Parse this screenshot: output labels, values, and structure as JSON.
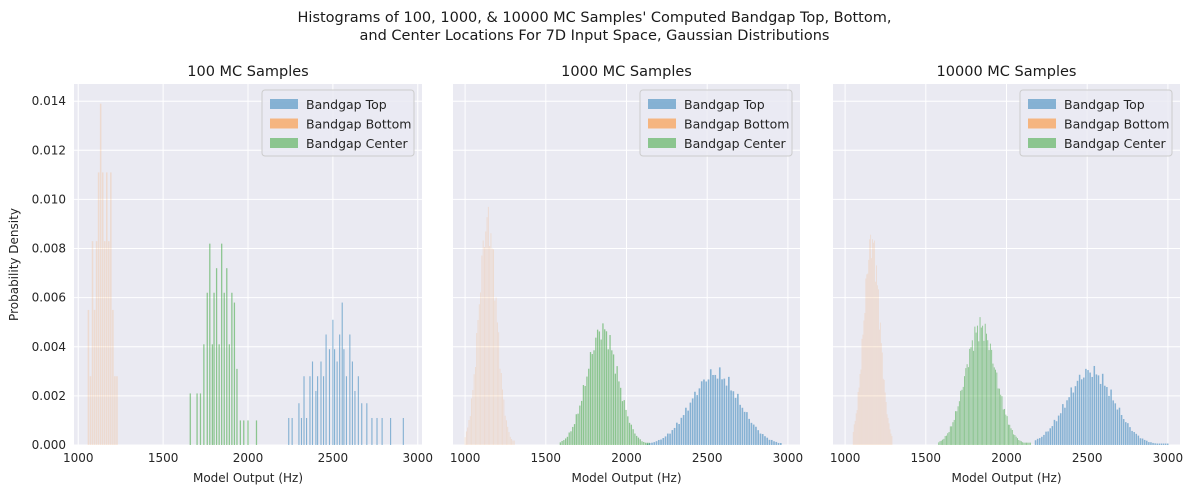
{
  "figure": {
    "title_line1": "Histograms of 100, 1000, & 10000 MC Samples' Computed Bandgap Top, Bottom,",
    "title_line2": "and Center Locations For 7D Input Space, Gaussian Distributions",
    "background": "#ffffff",
    "axes_background": "#eaeaf2",
    "grid_color": "#ffffff"
  },
  "chart_data": [
    {
      "type": "bar",
      "title": "100 MC Samples",
      "xlabel": "Model Output (Hz)",
      "ylabel": "Probability Density",
      "xlim": [
        975,
        3025
      ],
      "ylim": [
        0,
        0.0147
      ],
      "xticks": [
        "1000",
        "1500",
        "2000",
        "2500",
        "3000"
      ],
      "yticks": [
        "0.000",
        "0.002",
        "0.004",
        "0.006",
        "0.008",
        "0.010",
        "0.012",
        "0.014"
      ],
      "legend": [
        "Bandgap Top",
        "Bandgap Bottom",
        "Bandgap Center"
      ],
      "legend_position": "top-right",
      "series": [
        {
          "name": "Bandgap Top",
          "color": "#1f77b4",
          "alpha": 0.5,
          "bin_width": 6.6,
          "x": [
            2240,
            2260,
            2300,
            2315,
            2330,
            2345,
            2365,
            2380,
            2400,
            2410,
            2430,
            2445,
            2460,
            2480,
            2500,
            2510,
            2525,
            2540,
            2555,
            2565,
            2580,
            2600,
            2615,
            2630,
            2650,
            2670,
            2700,
            2730,
            2760,
            2790,
            2840,
            2915
          ],
          "y": [
            0.0011,
            0.0011,
            0.0017,
            0.0011,
            0.0028,
            0.0011,
            0.0028,
            0.0034,
            0.0022,
            0.0028,
            0.0034,
            0.0028,
            0.0045,
            0.0039,
            0.0051,
            0.0039,
            0.0034,
            0.0045,
            0.0058,
            0.0039,
            0.0028,
            0.0045,
            0.0034,
            0.0022,
            0.0028,
            0.0017,
            0.0017,
            0.0011,
            0.0011,
            0.0011,
            0.0011,
            0.0011
          ]
        },
        {
          "name": "Bandgap Bottom",
          "color": "#ff7f0e",
          "alpha": 0.15,
          "bin_width": 9,
          "x": [
            1060,
            1072,
            1084,
            1096,
            1108,
            1120,
            1132,
            1144,
            1156,
            1168,
            1180,
            1192,
            1204,
            1216,
            1228
          ],
          "y": [
            0.0055,
            0.0028,
            0.0083,
            0.0055,
            0.0083,
            0.0111,
            0.0139,
            0.0111,
            0.0083,
            0.0111,
            0.0083,
            0.0111,
            0.0055,
            0.0028,
            0.0028
          ]
        },
        {
          "name": "Bandgap Center",
          "color": "#2ca02c",
          "alpha": 0.5,
          "bin_width": 7.5,
          "x": [
            1660,
            1700,
            1720,
            1740,
            1760,
            1775,
            1790,
            1800,
            1815,
            1830,
            1845,
            1860,
            1875,
            1890,
            1905,
            1920,
            1935,
            1955,
            1975,
            2000,
            2050
          ],
          "y": [
            0.0021,
            0.0021,
            0.0021,
            0.0041,
            0.0062,
            0.0082,
            0.0041,
            0.0062,
            0.0072,
            0.0041,
            0.0082,
            0.0062,
            0.0072,
            0.0041,
            0.0062,
            0.0058,
            0.0031,
            0.001,
            0.001,
            0.001,
            0.001
          ]
        }
      ]
    },
    {
      "type": "bar",
      "title": "1000 MC Samples",
      "xlabel": "Model Output (Hz)",
      "xlim": [
        925,
        3075
      ],
      "ylim": [
        0,
        0.0147
      ],
      "xticks": [
        "1000",
        "1500",
        "2000",
        "2500",
        "3000"
      ],
      "legend": [
        "Bandgap Top",
        "Bandgap Bottom",
        "Bandgap Center"
      ],
      "legend_position": "top-right",
      "series": [
        {
          "name": "Bandgap Top",
          "color": "#1f77b4",
          "alpha": 0.5,
          "gauss": true,
          "mean": 2550,
          "sd": 150,
          "peak": 0.0029,
          "range": [
            2130,
            2960
          ],
          "step": 14
        },
        {
          "name": "Bandgap Bottom",
          "color": "#ff7f0e",
          "alpha": 0.15,
          "gauss": true,
          "mean": 1140,
          "sd": 55,
          "peak": 0.0091,
          "range": [
            1000,
            1310
          ],
          "step": 8
        },
        {
          "name": "Bandgap Center",
          "color": "#2ca02c",
          "alpha": 0.5,
          "gauss": true,
          "mean": 1850,
          "sd": 95,
          "peak": 0.0047,
          "range": [
            1590,
            2140
          ],
          "step": 11
        }
      ]
    },
    {
      "type": "bar",
      "title": "10000 MC Samples",
      "xlabel": "Model Output (Hz)",
      "xlim": [
        925,
        3075
      ],
      "ylim": [
        0,
        0.0147
      ],
      "xticks": [
        "1000",
        "1500",
        "2000",
        "2500",
        "3000"
      ],
      "legend": [
        "Bandgap Top",
        "Bandgap Bottom",
        "Bandgap Center"
      ],
      "legend_position": "top-right",
      "series": [
        {
          "name": "Bandgap Top",
          "color": "#1f77b4",
          "alpha": 0.5,
          "gauss": true,
          "mean": 2520,
          "sd": 145,
          "peak": 0.003,
          "range": [
            2180,
            3000
          ],
          "step": 13
        },
        {
          "name": "Bandgap Bottom",
          "color": "#ff7f0e",
          "alpha": 0.15,
          "gauss": true,
          "mean": 1165,
          "sd": 50,
          "peak": 0.0083,
          "range": [
            1050,
            1290
          ],
          "step": 6
        },
        {
          "name": "Bandgap Center",
          "color": "#2ca02c",
          "alpha": 0.5,
          "gauss": true,
          "mean": 1840,
          "sd": 95,
          "peak": 0.0048,
          "range": [
            1580,
            2150
          ],
          "step": 8
        }
      ]
    }
  ]
}
